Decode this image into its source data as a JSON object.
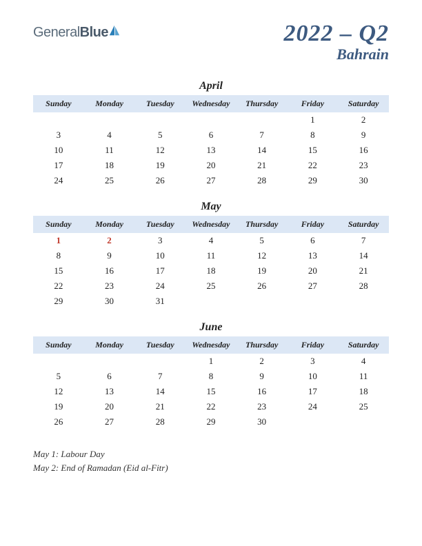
{
  "logo": {
    "text_general": "General",
    "text_blue": "Blue",
    "icon_color": "#2a7fb8"
  },
  "title": {
    "main": "2022 – Q2",
    "sub": "Bahrain",
    "color": "#3d5a80"
  },
  "day_headers": [
    "Sunday",
    "Monday",
    "Tuesday",
    "Wednesday",
    "Thursday",
    "Friday",
    "Saturday"
  ],
  "header_bg": "#dce7f5",
  "holiday_color": "#c0392b",
  "text_color": "#222",
  "months": [
    {
      "name": "April",
      "weeks": [
        [
          null,
          null,
          null,
          null,
          null,
          {
            "d": 1
          },
          {
            "d": 2
          }
        ],
        [
          {
            "d": 3
          },
          {
            "d": 4
          },
          {
            "d": 5
          },
          {
            "d": 6
          },
          {
            "d": 7
          },
          {
            "d": 8
          },
          {
            "d": 9
          }
        ],
        [
          {
            "d": 10
          },
          {
            "d": 11
          },
          {
            "d": 12
          },
          {
            "d": 13
          },
          {
            "d": 14
          },
          {
            "d": 15
          },
          {
            "d": 16
          }
        ],
        [
          {
            "d": 17
          },
          {
            "d": 18
          },
          {
            "d": 19
          },
          {
            "d": 20
          },
          {
            "d": 21
          },
          {
            "d": 22
          },
          {
            "d": 23
          }
        ],
        [
          {
            "d": 24
          },
          {
            "d": 25
          },
          {
            "d": 26
          },
          {
            "d": 27
          },
          {
            "d": 28
          },
          {
            "d": 29
          },
          {
            "d": 30
          }
        ]
      ]
    },
    {
      "name": "May",
      "weeks": [
        [
          {
            "d": 1,
            "h": true
          },
          {
            "d": 2,
            "h": true
          },
          {
            "d": 3
          },
          {
            "d": 4
          },
          {
            "d": 5
          },
          {
            "d": 6
          },
          {
            "d": 7
          }
        ],
        [
          {
            "d": 8
          },
          {
            "d": 9
          },
          {
            "d": 10
          },
          {
            "d": 11
          },
          {
            "d": 12
          },
          {
            "d": 13
          },
          {
            "d": 14
          }
        ],
        [
          {
            "d": 15
          },
          {
            "d": 16
          },
          {
            "d": 17
          },
          {
            "d": 18
          },
          {
            "d": 19
          },
          {
            "d": 20
          },
          {
            "d": 21
          }
        ],
        [
          {
            "d": 22
          },
          {
            "d": 23
          },
          {
            "d": 24
          },
          {
            "d": 25
          },
          {
            "d": 26
          },
          {
            "d": 27
          },
          {
            "d": 28
          }
        ],
        [
          {
            "d": 29
          },
          {
            "d": 30
          },
          {
            "d": 31
          },
          null,
          null,
          null,
          null
        ]
      ]
    },
    {
      "name": "June",
      "weeks": [
        [
          null,
          null,
          null,
          {
            "d": 1
          },
          {
            "d": 2
          },
          {
            "d": 3
          },
          {
            "d": 4
          }
        ],
        [
          {
            "d": 5
          },
          {
            "d": 6
          },
          {
            "d": 7
          },
          {
            "d": 8
          },
          {
            "d": 9
          },
          {
            "d": 10
          },
          {
            "d": 11
          }
        ],
        [
          {
            "d": 12
          },
          {
            "d": 13
          },
          {
            "d": 14
          },
          {
            "d": 15
          },
          {
            "d": 16
          },
          {
            "d": 17
          },
          {
            "d": 18
          }
        ],
        [
          {
            "d": 19
          },
          {
            "d": 20
          },
          {
            "d": 21
          },
          {
            "d": 22
          },
          {
            "d": 23
          },
          {
            "d": 24
          },
          {
            "d": 25
          }
        ],
        [
          {
            "d": 26
          },
          {
            "d": 27
          },
          {
            "d": 28
          },
          {
            "d": 29
          },
          {
            "d": 30
          },
          null,
          null
        ]
      ]
    }
  ],
  "holidays": [
    "May 1: Labour Day",
    "May 2: End of Ramadan (Eid al-Fitr)"
  ]
}
